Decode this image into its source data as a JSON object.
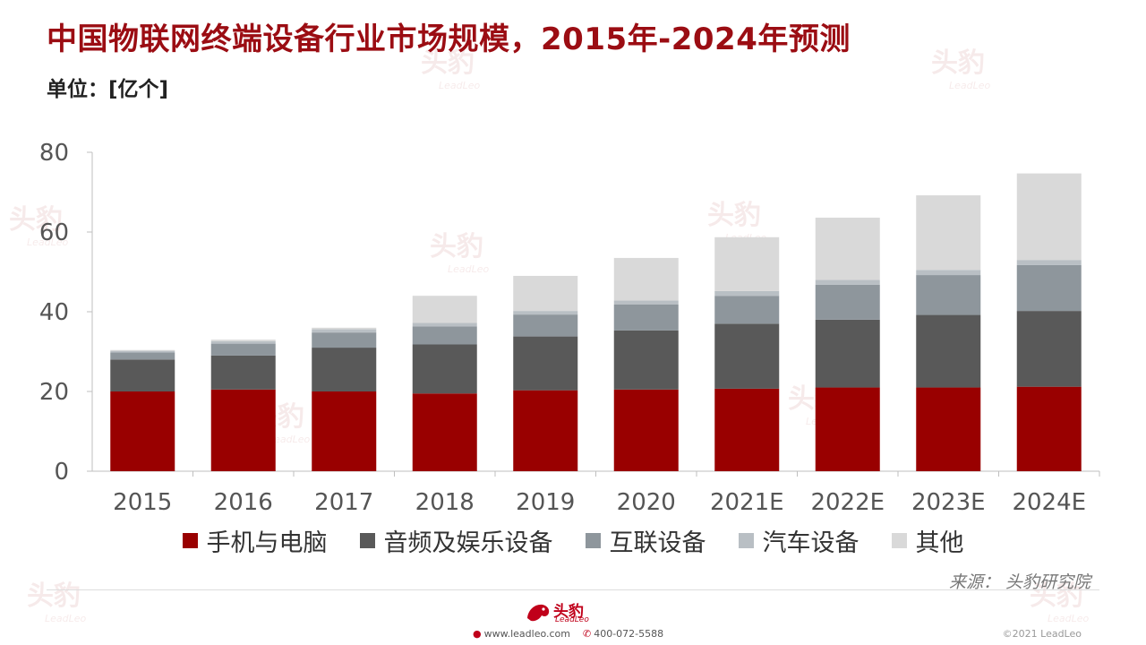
{
  "header": {
    "title": "中国物联网终端设备行业市场规模，2015年-2024年预测",
    "unit": "单位：[亿个]"
  },
  "watermark": {
    "cn": "头豹",
    "en": "LeadLeo"
  },
  "chart_data": {
    "type": "bar",
    "stacked": true,
    "categories": [
      "2015",
      "2016",
      "2017",
      "2018",
      "2019",
      "2020",
      "2021E",
      "2022E",
      "2023E",
      "2024E"
    ],
    "series": [
      {
        "name": "手机与电脑",
        "color": "#990000",
        "values": [
          20.0,
          20.5,
          20.0,
          19.5,
          20.3,
          20.5,
          20.7,
          21.0,
          21.0,
          21.2
        ]
      },
      {
        "name": "音频及娱乐设备",
        "color": "#595959",
        "values": [
          8.0,
          8.5,
          11.0,
          12.3,
          13.5,
          14.8,
          16.3,
          17.0,
          18.2,
          19.0
        ]
      },
      {
        "name": "互联设备",
        "color": "#8e969c",
        "values": [
          1.8,
          3.0,
          3.8,
          4.5,
          5.5,
          6.5,
          7.0,
          8.8,
          10.0,
          11.5
        ]
      },
      {
        "name": "汽车设备",
        "color": "#b9bfc4",
        "values": [
          0.4,
          0.6,
          0.8,
          0.9,
          0.9,
          1.0,
          1.2,
          1.2,
          1.3,
          1.3
        ]
      },
      {
        "name": "其他",
        "color": "#d9d9d9",
        "values": [
          0.2,
          0.4,
          0.4,
          6.8,
          8.8,
          10.7,
          13.5,
          15.6,
          18.7,
          21.7
        ]
      }
    ],
    "xlabel": "",
    "ylabel": "",
    "ylim": [
      0,
      80
    ],
    "yticks": [
      0,
      20,
      40,
      60,
      80
    ],
    "grid": false,
    "legend": "bottom"
  },
  "footer": {
    "source": "来源： 头豹研究院",
    "website": "www.leadleo.com",
    "phone": "400-072-5588",
    "copyright": "©2021 LeadLeo"
  }
}
